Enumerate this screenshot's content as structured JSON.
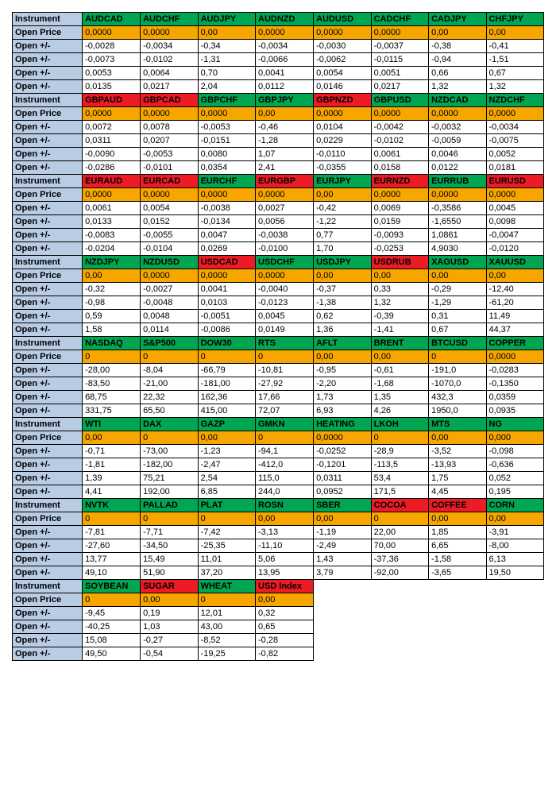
{
  "colors": {
    "label_bg": "#b8cce4",
    "green": "#00a651",
    "red": "#ed1c24",
    "orange": "#f7a600",
    "white": "#ffffff",
    "border": "#000000"
  },
  "labels": {
    "instrument": "Instrument",
    "open_price": "Open Price",
    "open_pm": "Open +/-"
  },
  "blocks": [
    {
      "instruments": [
        {
          "name": "AUDCAD",
          "color": "green"
        },
        {
          "name": "AUDCHF",
          "color": "green"
        },
        {
          "name": "AUDJPY",
          "color": "green"
        },
        {
          "name": "AUDNZD",
          "color": "green"
        },
        {
          "name": "AUDUSD",
          "color": "green"
        },
        {
          "name": "CADCHF",
          "color": "green"
        },
        {
          "name": "CADJPY",
          "color": "green"
        },
        {
          "name": "CHFJPY",
          "color": "green"
        }
      ],
      "open_price": [
        "0,0000",
        "0,0000",
        "0,00",
        "0,0000",
        "0,0000",
        "0,0000",
        "0,00",
        "0,00"
      ],
      "rows": [
        [
          "-0,0028",
          "-0,0034",
          "-0,34",
          "-0,0034",
          "-0,0030",
          "-0,0037",
          "-0,38",
          "-0,41"
        ],
        [
          "-0,0073",
          "-0,0102",
          "-1,31",
          "-0,0066",
          "-0,0062",
          "-0,0115",
          "-0,94",
          "-1,51"
        ],
        [
          "0,0053",
          "0,0064",
          "0,70",
          "0,0041",
          "0,0054",
          "0,0051",
          "0,66",
          "0,67"
        ],
        [
          "0,0135",
          "0,0217",
          "2,04",
          "0,0112",
          "0,0146",
          "0,0217",
          "1,32",
          "1,32"
        ]
      ]
    },
    {
      "instruments": [
        {
          "name": "GBPAUD",
          "color": "red"
        },
        {
          "name": "GBPCAD",
          "color": "red"
        },
        {
          "name": "GBPCHF",
          "color": "green"
        },
        {
          "name": "GBPJPY",
          "color": "green"
        },
        {
          "name": "GBPNZD",
          "color": "red"
        },
        {
          "name": "GBPUSD",
          "color": "green"
        },
        {
          "name": "NZDCAD",
          "color": "green"
        },
        {
          "name": "NZDCHF",
          "color": "green"
        }
      ],
      "open_price": [
        "0,0000",
        "0,0000",
        "0,0000",
        "0,00",
        "0,0000",
        "0,0000",
        "0,0000",
        "0,0000"
      ],
      "rows": [
        [
          "0,0072",
          "0,0078",
          "-0,0053",
          "-0,46",
          "0,0104",
          "-0,0042",
          "-0,0032",
          "-0,0034"
        ],
        [
          "0,0311",
          "0,0207",
          "-0,0151",
          "-1,28",
          "0,0229",
          "-0,0102",
          "-0,0059",
          "-0,0075"
        ],
        [
          "-0,0090",
          "-0,0053",
          "0,0080",
          "1,07",
          "-0,0110",
          "0,0061",
          "0,0046",
          "0,0052"
        ],
        [
          "-0,0286",
          "-0,0101",
          "0,0354",
          "2,41",
          "-0,0355",
          "0,0158",
          "0,0122",
          "0,0181"
        ]
      ]
    },
    {
      "instruments": [
        {
          "name": "EURAUD",
          "color": "red"
        },
        {
          "name": "EURCAD",
          "color": "red"
        },
        {
          "name": "EURCHF",
          "color": "green"
        },
        {
          "name": "EURGBP",
          "color": "red"
        },
        {
          "name": "EURJPY",
          "color": "green"
        },
        {
          "name": "EURNZD",
          "color": "red"
        },
        {
          "name": "EURRUB",
          "color": "green"
        },
        {
          "name": "EURUSD",
          "color": "red"
        }
      ],
      "open_price": [
        "0,0000",
        "0,0000",
        "0,0000",
        "0,0000",
        "0,00",
        "0,0000",
        "0,0000",
        "0,0000"
      ],
      "rows": [
        [
          "0,0061",
          "0,0054",
          "-0,0038",
          "0,0027",
          "-0,42",
          "0,0069",
          "-0,3586",
          "0,0045"
        ],
        [
          "0,0133",
          "0,0152",
          "-0,0134",
          "0,0056",
          "-1,22",
          "0,0159",
          "-1,6550",
          "0,0098"
        ],
        [
          "-0,0083",
          "-0,0055",
          "0,0047",
          "-0,0038",
          "0,77",
          "-0,0093",
          "1,0861",
          "-0,0047"
        ],
        [
          "-0,0204",
          "-0,0104",
          "0,0269",
          "-0,0100",
          "1,70",
          "-0,0253",
          "4,9030",
          "-0,0120"
        ]
      ]
    },
    {
      "instruments": [
        {
          "name": "NZDJPY",
          "color": "green"
        },
        {
          "name": "NZDUSD",
          "color": "green"
        },
        {
          "name": "USDCAD",
          "color": "red"
        },
        {
          "name": "USDCHF",
          "color": "green"
        },
        {
          "name": "USDJPY",
          "color": "green"
        },
        {
          "name": "USDRUB",
          "color": "red"
        },
        {
          "name": "XAGUSD",
          "color": "green"
        },
        {
          "name": "XAUUSD",
          "color": "green"
        }
      ],
      "open_price": [
        "0,00",
        "0,0000",
        "0,0000",
        "0,0000",
        "0,00",
        "0,00",
        "0,00",
        "0,00"
      ],
      "rows": [
        [
          "-0,32",
          "-0,0027",
          "0,0041",
          "-0,0040",
          "-0,37",
          "0,33",
          "-0,29",
          "-12,40"
        ],
        [
          "-0,98",
          "-0,0048",
          "0,0103",
          "-0,0123",
          "-1,38",
          "1,32",
          "-1,29",
          "-61,20"
        ],
        [
          "0,59",
          "0,0048",
          "-0,0051",
          "0,0045",
          "0,62",
          "-0,39",
          "0,31",
          "11,49"
        ],
        [
          "1,58",
          "0,0114",
          "-0,0086",
          "0,0149",
          "1,36",
          "-1,41",
          "0,67",
          "44,37"
        ]
      ]
    },
    {
      "instruments": [
        {
          "name": "NASDAQ",
          "color": "green"
        },
        {
          "name": "S&P500",
          "color": "green"
        },
        {
          "name": "DOW30",
          "color": "green"
        },
        {
          "name": "RTS",
          "color": "green"
        },
        {
          "name": "AFLT",
          "color": "green"
        },
        {
          "name": "BRENT",
          "color": "green"
        },
        {
          "name": "BTCUSD",
          "color": "green"
        },
        {
          "name": "COPPER",
          "color": "green"
        }
      ],
      "open_price": [
        "0",
        "0",
        "0",
        "0",
        "0,00",
        "0,00",
        "0",
        "0,0000"
      ],
      "rows": [
        [
          "-28,00",
          "-8,04",
          "-66,79",
          "-10,81",
          "-0,95",
          "-0,61",
          "-191,0",
          "-0,0283"
        ],
        [
          "-83,50",
          "-21,00",
          "-181,00",
          "-27,92",
          "-2,20",
          "-1,68",
          "-1070,0",
          "-0,1350"
        ],
        [
          "68,75",
          "22,32",
          "162,36",
          "17,66",
          "1,73",
          "1,35",
          "432,3",
          "0,0359"
        ],
        [
          "331,75",
          "65,50",
          "415,00",
          "72,07",
          "6,93",
          "4,26",
          "1950,0",
          "0,0935"
        ]
      ]
    },
    {
      "instruments": [
        {
          "name": "WTI",
          "color": "green"
        },
        {
          "name": "DAX",
          "color": "green"
        },
        {
          "name": "GAZP",
          "color": "green"
        },
        {
          "name": "GMKN",
          "color": "green"
        },
        {
          "name": "HEATING",
          "color": "green"
        },
        {
          "name": "LKOH",
          "color": "green"
        },
        {
          "name": "MTS",
          "color": "green"
        },
        {
          "name": "NG",
          "color": "green"
        }
      ],
      "open_price": [
        "0,00",
        "0",
        "0,00",
        "0",
        "0,0000",
        "0",
        "0,00",
        "0,000"
      ],
      "rows": [
        [
          "-0,71",
          "-73,00",
          "-1,23",
          "-94,1",
          "-0,0252",
          "-28,9",
          "-3,52",
          "-0,098"
        ],
        [
          "-1,81",
          "-182,00",
          "-2,47",
          "-412,0",
          "-0,1201",
          "-113,5",
          "-13,93",
          "-0,636"
        ],
        [
          "1,39",
          "75,21",
          "2,54",
          "115,0",
          "0,0311",
          "53,4",
          "1,75",
          "0,052"
        ],
        [
          "4,41",
          "192,00",
          "6,85",
          "244,0",
          "0,0952",
          "171,5",
          "4,45",
          "0,195"
        ]
      ]
    },
    {
      "instruments": [
        {
          "name": "NVTK",
          "color": "green"
        },
        {
          "name": "PALLAD",
          "color": "green"
        },
        {
          "name": "PLAT",
          "color": "green"
        },
        {
          "name": "ROSN",
          "color": "green"
        },
        {
          "name": "SBER",
          "color": "green"
        },
        {
          "name": "COCOA",
          "color": "red"
        },
        {
          "name": "COFFEE",
          "color": "red"
        },
        {
          "name": "CORN",
          "color": "green"
        }
      ],
      "open_price": [
        "0",
        "0",
        "0",
        "0,00",
        "0,00",
        "0",
        "0,00",
        "0,00"
      ],
      "rows": [
        [
          "-7,81",
          "-7,71",
          "-7,42",
          "-3,13",
          "-1,19",
          "22,00",
          "1,85",
          "-3,91"
        ],
        [
          "-27,60",
          "-34,50",
          "-25,35",
          "-11,10",
          "-2,49",
          "70,00",
          "6,65",
          "-8,00"
        ],
        [
          "13,77",
          "15,49",
          "11,01",
          "5,06",
          "1,43",
          "-37,36",
          "-1,58",
          "6,13"
        ],
        [
          "49,10",
          "51,90",
          "37,20",
          "13,95",
          "3,79",
          "-92,00",
          "-3,65",
          "19,50"
        ]
      ]
    },
    {
      "instruments": [
        {
          "name": "SOYBEAN",
          "color": "green"
        },
        {
          "name": "SUGAR",
          "color": "red"
        },
        {
          "name": "WHEAT",
          "color": "green"
        },
        {
          "name": "USD Index",
          "color": "red"
        }
      ],
      "open_price": [
        "0",
        "0,00",
        "0",
        "0,00"
      ],
      "rows": [
        [
          "-9,45",
          "0,19",
          "12,01",
          "0,32"
        ],
        [
          "-40,25",
          "1,03",
          "43,00",
          "0,65"
        ],
        [
          "15,08",
          "-0,27",
          "-8,52",
          "-0,28"
        ],
        [
          "49,50",
          "-0,54",
          "-19,25",
          "-0,82"
        ]
      ]
    }
  ]
}
